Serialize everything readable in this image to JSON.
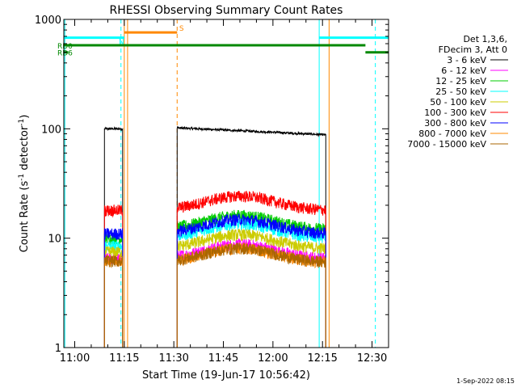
{
  "chart_data": {
    "type": "line",
    "title": "RHESSI Observing Summary Count Rates",
    "xlabel": "Start Time (19-Jun-17 10:56:42)",
    "ylabel_main": "Count Rate (s",
    "ylabel_sup1": "-1",
    "ylabel_mid": " detector",
    "ylabel_sup2": "-1",
    "ylabel_end": ")",
    "yscale": "log",
    "ylim": [
      1,
      1000
    ],
    "xlim": [
      "10:56:42",
      "12:35:00"
    ],
    "x_ticks": [
      "11:00",
      "11:15",
      "11:30",
      "11:45",
      "12:00",
      "12:15",
      "12:30"
    ],
    "y_ticks": [
      "1",
      "10",
      "100",
      "1000"
    ],
    "legend_header": [
      "Det 1,3,6,",
      "FDecim 3, Att 0"
    ],
    "legend_position": "right",
    "series": [
      {
        "name": "3 - 6 keV",
        "color": "#000000",
        "segments": [
          {
            "start": "11:09",
            "end": "11:14:30",
            "level": 100
          },
          {
            "start": "11:31",
            "end": "12:16",
            "level_start": 102,
            "level_end": 88
          }
        ]
      },
      {
        "name": "6 - 12 keV",
        "color": "#ff00ff",
        "segments": [
          {
            "start": "11:09",
            "end": "11:14:30",
            "level": 6.5
          },
          {
            "start": "11:31",
            "end": "12:16",
            "level": 6.5
          }
        ]
      },
      {
        "name": "12 - 25 keV",
        "color": "#00cc00",
        "segments": [
          {
            "start": "11:09",
            "end": "11:14:30",
            "level": 10
          },
          {
            "start": "11:31",
            "end": "12:16",
            "level": 12
          }
        ]
      },
      {
        "name": "25 - 50 keV",
        "color": "#00ffff",
        "segments": [
          {
            "start": "11:09",
            "end": "11:14:30",
            "level": 8.5
          },
          {
            "start": "11:31",
            "end": "12:16",
            "level": 10
          }
        ]
      },
      {
        "name": "50 - 100 keV",
        "color": "#cccc00",
        "segments": [
          {
            "start": "11:09",
            "end": "11:14:30",
            "level": 7.5
          },
          {
            "start": "11:31",
            "end": "12:16",
            "level": 8
          }
        ]
      },
      {
        "name": "100 - 300 keV",
        "color": "#ff0000",
        "segments": [
          {
            "start": "11:09",
            "end": "11:14:30",
            "level": 18
          },
          {
            "start": "11:31",
            "end": "12:16",
            "level": 18
          }
        ]
      },
      {
        "name": "300 - 800 keV",
        "color": "#0000ff",
        "segments": [
          {
            "start": "11:09",
            "end": "11:14:30",
            "level": 11
          },
          {
            "start": "11:31",
            "end": "12:16",
            "level": 11
          }
        ]
      },
      {
        "name": "800 - 7000 keV",
        "color": "#ff8800",
        "segments": [
          {
            "start": "11:09",
            "end": "11:14:30",
            "level": 6.3
          },
          {
            "start": "11:31",
            "end": "12:16",
            "level": 6
          }
        ]
      },
      {
        "name": "7000 - 15000 keV",
        "color": "#aa6600",
        "segments": [
          {
            "start": "11:09",
            "end": "11:14:30",
            "level": 6.2
          },
          {
            "start": "11:31",
            "end": "12:16",
            "level": 6
          }
        ]
      }
    ],
    "flags": [
      {
        "label": "S",
        "color": "#ff8800",
        "start": "11:15",
        "end": "11:31",
        "level": 760
      },
      {
        "label": "N",
        "color": "#00ffff",
        "start": "10:56:42",
        "end": "11:15",
        "level": 680
      },
      {
        "label": "",
        "color": "#00ffff",
        "start": "12:14",
        "end": "12:35",
        "level": 680
      },
      {
        "label": "RD0",
        "color": "#008800",
        "start": "10:56:42",
        "end": "12:28",
        "level": 580
      },
      {
        "label": "RD6",
        "color": "#008800",
        "start": "10:56:42",
        "end": "10:58",
        "level": 500
      },
      {
        "label": "",
        "color": "#008800",
        "start": "12:28",
        "end": "12:35",
        "level": 500
      }
    ],
    "vlines": [
      {
        "time": "10:57",
        "color": "#00ffff",
        "dash": false
      },
      {
        "time": "11:14",
        "color": "#00ffff",
        "dash": true
      },
      {
        "time": "11:15",
        "color": "#ff8800",
        "dash": false
      },
      {
        "time": "11:16",
        "color": "#ff8800",
        "dash": false
      },
      {
        "time": "11:31",
        "color": "#ff8800",
        "dash": true
      },
      {
        "time": "12:14",
        "color": "#00ffff",
        "dash": false
      },
      {
        "time": "12:17",
        "color": "#ff8800",
        "dash": false
      },
      {
        "time": "12:31",
        "color": "#00ffff",
        "dash": true
      }
    ],
    "timestamp": "1-Sep-2022 08:15"
  }
}
